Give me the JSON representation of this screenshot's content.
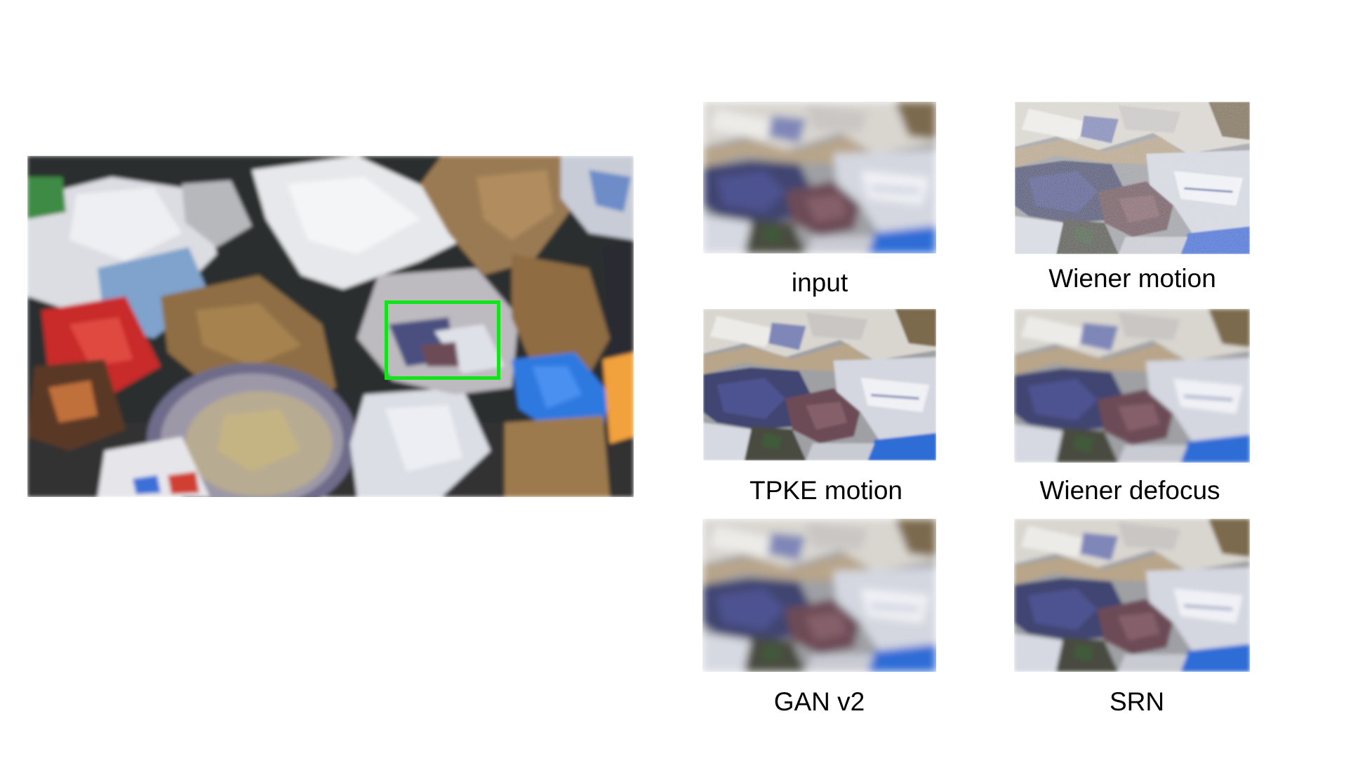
{
  "main_image": {
    "alt": "",
    "roi_color": "#12e41a"
  },
  "panels": [
    {
      "caption": "input"
    },
    {
      "caption": "Wiener motion"
    },
    {
      "caption": "TPKE motion"
    },
    {
      "caption": "Wiener defocus"
    },
    {
      "caption": "GAN v2"
    },
    {
      "caption": "SRN"
    }
  ]
}
